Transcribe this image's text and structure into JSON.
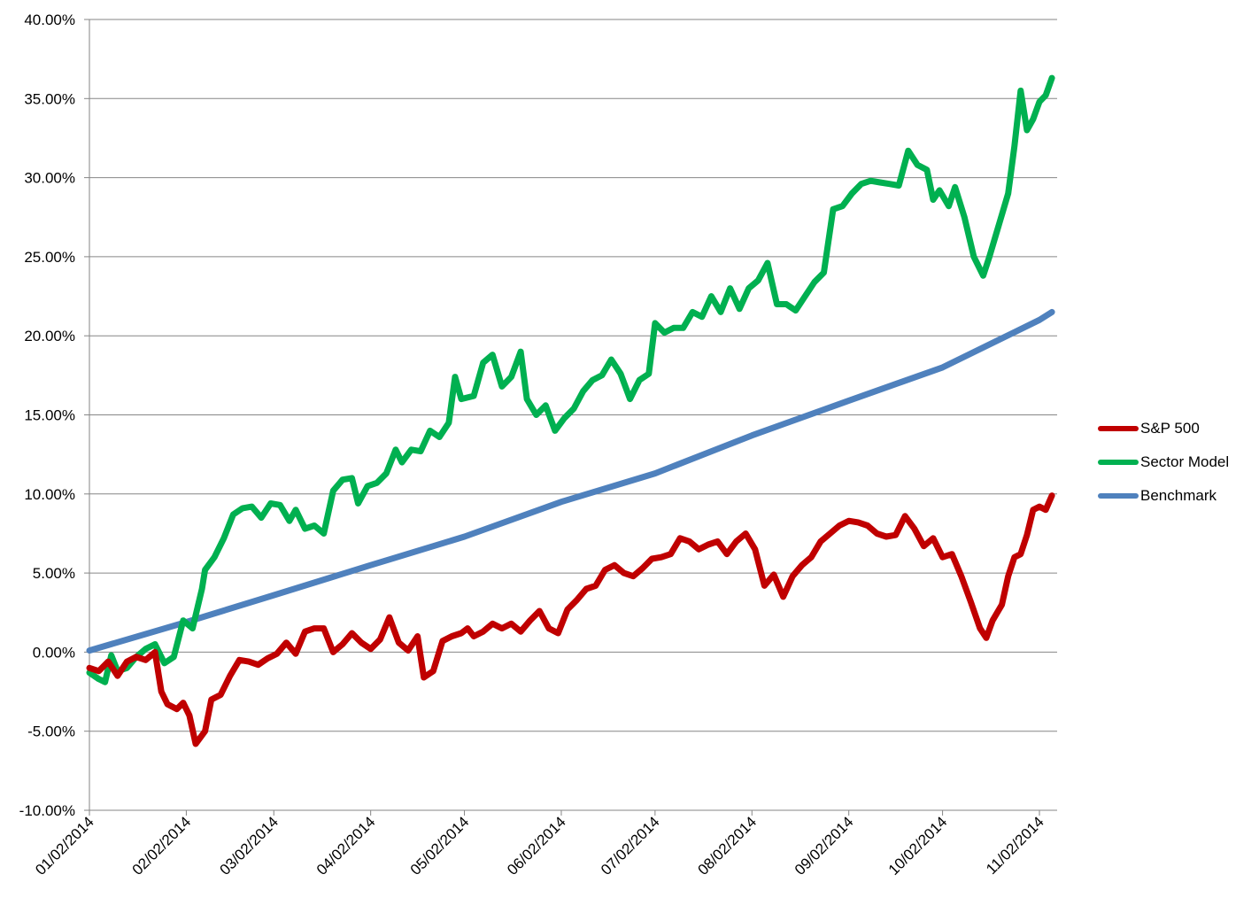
{
  "chart_data": {
    "type": "line",
    "title": "",
    "xlabel": "",
    "ylabel": "",
    "x_tick_labels": [
      "01/02/2014",
      "02/02/2014",
      "03/02/2014",
      "04/02/2014",
      "05/02/2014",
      "06/02/2014",
      "07/02/2014",
      "08/02/2014",
      "09/02/2014",
      "10/02/2014",
      "11/02/2014"
    ],
    "y_tick_labels": [
      "-10.00%",
      "-5.00%",
      "0.00%",
      "5.00%",
      "10.00%",
      "15.00%",
      "20.00%",
      "25.00%",
      "30.00%",
      "35.00%",
      "40.00%"
    ],
    "ylim": [
      -10,
      40
    ],
    "y_unit": "%",
    "grid": "horizontal",
    "legend_position": "right",
    "series": [
      {
        "name": "S&P 500",
        "color": "#c00000",
        "points": [
          [
            "01/02/2014",
            -1.0
          ],
          [
            "01/05/2014",
            -1.2
          ],
          [
            "01/08/2014",
            -0.6
          ],
          [
            "01/11/2014",
            -1.5
          ],
          [
            "01/14/2014",
            -0.6
          ],
          [
            "01/17/2014",
            -0.3
          ],
          [
            "01/20/2014",
            -0.5
          ],
          [
            "01/23/2014",
            0.0
          ],
          [
            "01/25/2014",
            -2.5
          ],
          [
            "01/27/2014",
            -3.3
          ],
          [
            "01/30/2014",
            -3.6
          ],
          [
            "02/01/2014",
            -3.2
          ],
          [
            "02/03/2014",
            -4.0
          ],
          [
            "02/05/2014",
            -5.8
          ],
          [
            "02/08/2014",
            -5.0
          ],
          [
            "02/10/2014",
            -3.0
          ],
          [
            "02/13/2014",
            -2.7
          ],
          [
            "02/16/2014",
            -1.5
          ],
          [
            "02/19/2014",
            -0.5
          ],
          [
            "02/22/2014",
            -0.6
          ],
          [
            "02/25/2014",
            -0.8
          ],
          [
            "02/28/2014",
            -0.4
          ],
          [
            "03/03/2014",
            -0.1
          ],
          [
            "03/06/2014",
            0.6
          ],
          [
            "03/09/2014",
            -0.1
          ],
          [
            "03/12/2014",
            1.3
          ],
          [
            "03/15/2014",
            1.5
          ],
          [
            "03/18/2014",
            1.5
          ],
          [
            "03/21/2014",
            0.0
          ],
          [
            "03/24/2014",
            0.5
          ],
          [
            "03/27/2014",
            1.2
          ],
          [
            "03/30/2014",
            0.6
          ],
          [
            "04/02/2014",
            0.2
          ],
          [
            "04/05/2014",
            0.8
          ],
          [
            "04/08/2014",
            2.2
          ],
          [
            "04/11/2014",
            0.6
          ],
          [
            "04/14/2014",
            0.1
          ],
          [
            "04/17/2014",
            1.0
          ],
          [
            "04/19/2014",
            -1.6
          ],
          [
            "04/22/2014",
            -1.2
          ],
          [
            "04/25/2014",
            0.7
          ],
          [
            "04/28/2014",
            1.0
          ],
          [
            "05/01/2014",
            1.2
          ],
          [
            "05/03/2014",
            1.5
          ],
          [
            "05/05/2014",
            1.0
          ],
          [
            "05/08/2014",
            1.3
          ],
          [
            "05/11/2014",
            1.8
          ],
          [
            "05/14/2014",
            1.5
          ],
          [
            "05/17/2014",
            1.8
          ],
          [
            "05/20/2014",
            1.3
          ],
          [
            "05/23/2014",
            2.0
          ],
          [
            "05/26/2014",
            2.6
          ],
          [
            "05/29/2014",
            1.5
          ],
          [
            "06/01/2014",
            1.2
          ],
          [
            "06/04/2014",
            2.7
          ],
          [
            "06/07/2014",
            3.3
          ],
          [
            "06/10/2014",
            4.0
          ],
          [
            "06/13/2014",
            4.2
          ],
          [
            "06/16/2014",
            5.2
          ],
          [
            "06/19/2014",
            5.5
          ],
          [
            "06/22/2014",
            5.0
          ],
          [
            "06/25/2014",
            4.8
          ],
          [
            "06/28/2014",
            5.3
          ],
          [
            "07/01/2014",
            5.9
          ],
          [
            "07/04/2014",
            6.0
          ],
          [
            "07/07/2014",
            6.2
          ],
          [
            "07/10/2014",
            7.2
          ],
          [
            "07/13/2014",
            7.0
          ],
          [
            "07/16/2014",
            6.5
          ],
          [
            "07/19/2014",
            6.8
          ],
          [
            "07/22/2014",
            7.0
          ],
          [
            "07/25/2014",
            6.2
          ],
          [
            "07/28/2014",
            7.0
          ],
          [
            "07/31/2014",
            7.5
          ],
          [
            "08/03/2014",
            6.5
          ],
          [
            "08/06/2014",
            4.2
          ],
          [
            "08/09/2014",
            4.9
          ],
          [
            "08/12/2014",
            3.5
          ],
          [
            "08/15/2014",
            4.8
          ],
          [
            "08/18/2014",
            5.5
          ],
          [
            "08/21/2014",
            6.0
          ],
          [
            "08/24/2014",
            7.0
          ],
          [
            "08/27/2014",
            7.5
          ],
          [
            "08/30/2014",
            8.0
          ],
          [
            "09/02/2014",
            8.3
          ],
          [
            "09/05/2014",
            8.2
          ],
          [
            "09/08/2014",
            8.0
          ],
          [
            "09/11/2014",
            7.5
          ],
          [
            "09/14/2014",
            7.3
          ],
          [
            "09/17/2014",
            7.4
          ],
          [
            "09/20/2014",
            8.6
          ],
          [
            "09/23/2014",
            7.8
          ],
          [
            "09/26/2014",
            6.7
          ],
          [
            "09/29/2014",
            7.2
          ],
          [
            "10/02/2014",
            6.0
          ],
          [
            "10/05/2014",
            6.2
          ],
          [
            "10/08/2014",
            4.8
          ],
          [
            "10/11/2014",
            3.2
          ],
          [
            "10/14/2014",
            1.5
          ],
          [
            "10/16/2014",
            0.9
          ],
          [
            "10/18/2014",
            2.0
          ],
          [
            "10/21/2014",
            3.0
          ],
          [
            "10/23/2014",
            4.8
          ],
          [
            "10/25/2014",
            6.0
          ],
          [
            "10/27/2014",
            6.2
          ],
          [
            "10/29/2014",
            7.4
          ],
          [
            "10/31/2014",
            9.0
          ],
          [
            "11/02/2014",
            9.2
          ],
          [
            "11/04/2014",
            9.0
          ],
          [
            "11/06/2014",
            9.9
          ]
        ]
      },
      {
        "name": "Sector Model",
        "color": "#00b050",
        "points": [
          [
            "01/02/2014",
            -1.3
          ],
          [
            "01/05/2014",
            -1.7
          ],
          [
            "01/07/2014",
            -1.9
          ],
          [
            "01/09/2014",
            -0.2
          ],
          [
            "01/11/2014",
            -1.2
          ],
          [
            "01/14/2014",
            -1.0
          ],
          [
            "01/17/2014",
            -0.3
          ],
          [
            "01/20/2014",
            0.2
          ],
          [
            "01/23/2014",
            0.5
          ],
          [
            "01/26/2014",
            -0.7
          ],
          [
            "01/29/2014",
            -0.3
          ],
          [
            "02/01/2014",
            2.0
          ],
          [
            "02/04/2014",
            1.5
          ],
          [
            "02/07/2014",
            4.0
          ],
          [
            "02/08/2014",
            5.2
          ],
          [
            "02/11/2014",
            6.0
          ],
          [
            "02/14/2014",
            7.2
          ],
          [
            "02/17/2014",
            8.7
          ],
          [
            "02/20/2014",
            9.1
          ],
          [
            "02/23/2014",
            9.2
          ],
          [
            "02/26/2014",
            8.5
          ],
          [
            "03/01/2014",
            9.4
          ],
          [
            "03/04/2014",
            9.3
          ],
          [
            "03/07/2014",
            8.3
          ],
          [
            "03/09/2014",
            9.0
          ],
          [
            "03/12/2014",
            7.8
          ],
          [
            "03/15/2014",
            8.0
          ],
          [
            "03/18/2014",
            7.5
          ],
          [
            "03/21/2014",
            10.2
          ],
          [
            "03/24/2014",
            10.9
          ],
          [
            "03/27/2014",
            11.0
          ],
          [
            "03/29/2014",
            9.4
          ],
          [
            "04/01/2014",
            10.5
          ],
          [
            "04/04/2014",
            10.7
          ],
          [
            "04/07/2014",
            11.3
          ],
          [
            "04/10/2014",
            12.8
          ],
          [
            "04/12/2014",
            12.0
          ],
          [
            "04/15/2014",
            12.8
          ],
          [
            "04/18/2014",
            12.7
          ],
          [
            "04/21/2014",
            14.0
          ],
          [
            "04/24/2014",
            13.6
          ],
          [
            "04/27/2014",
            14.5
          ],
          [
            "04/29/2014",
            17.4
          ],
          [
            "05/01/2014",
            16.0
          ],
          [
            "05/05/2014",
            16.2
          ],
          [
            "05/08/2014",
            18.3
          ],
          [
            "05/11/2014",
            18.8
          ],
          [
            "05/14/2014",
            16.8
          ],
          [
            "05/17/2014",
            17.4
          ],
          [
            "05/20/2014",
            19.0
          ],
          [
            "05/22/2014",
            16.0
          ],
          [
            "05/25/2014",
            15.0
          ],
          [
            "05/28/2014",
            15.6
          ],
          [
            "05/31/2014",
            14.0
          ],
          [
            "06/03/2014",
            14.8
          ],
          [
            "06/06/2014",
            15.4
          ],
          [
            "06/09/2014",
            16.5
          ],
          [
            "06/12/2014",
            17.2
          ],
          [
            "06/15/2014",
            17.5
          ],
          [
            "06/18/2014",
            18.5
          ],
          [
            "06/21/2014",
            17.6
          ],
          [
            "06/24/2014",
            16.0
          ],
          [
            "06/27/2014",
            17.2
          ],
          [
            "06/30/2014",
            17.6
          ],
          [
            "07/02/2014",
            20.8
          ],
          [
            "07/05/2014",
            20.2
          ],
          [
            "07/08/2014",
            20.5
          ],
          [
            "07/11/2014",
            20.5
          ],
          [
            "07/14/2014",
            21.5
          ],
          [
            "07/17/2014",
            21.2
          ],
          [
            "07/20/2014",
            22.5
          ],
          [
            "07/23/2014",
            21.5
          ],
          [
            "07/26/2014",
            23.0
          ],
          [
            "07/29/2014",
            21.7
          ],
          [
            "08/01/2014",
            23.0
          ],
          [
            "08/04/2014",
            23.5
          ],
          [
            "08/07/2014",
            24.6
          ],
          [
            "08/10/2014",
            22.0
          ],
          [
            "08/13/2014",
            22.0
          ],
          [
            "08/16/2014",
            21.6
          ],
          [
            "08/19/2014",
            22.5
          ],
          [
            "08/22/2014",
            23.4
          ],
          [
            "08/25/2014",
            24.0
          ],
          [
            "08/28/2014",
            28.0
          ],
          [
            "08/31/2014",
            28.2
          ],
          [
            "09/03/2014",
            29.0
          ],
          [
            "09/06/2014",
            29.6
          ],
          [
            "09/09/2014",
            29.8
          ],
          [
            "09/12/2014",
            29.7
          ],
          [
            "09/15/2014",
            29.6
          ],
          [
            "09/18/2014",
            29.5
          ],
          [
            "09/21/2014",
            31.7
          ],
          [
            "09/24/2014",
            30.8
          ],
          [
            "09/27/2014",
            30.5
          ],
          [
            "09/29/2014",
            28.6
          ],
          [
            "10/01/2014",
            29.2
          ],
          [
            "10/04/2014",
            28.2
          ],
          [
            "10/06/2014",
            29.4
          ],
          [
            "10/09/2014",
            27.5
          ],
          [
            "10/12/2014",
            25.0
          ],
          [
            "10/15/2014",
            23.8
          ],
          [
            "10/17/2014",
            25.0
          ],
          [
            "10/20/2014",
            27.0
          ],
          [
            "10/23/2014",
            29.0
          ],
          [
            "10/25/2014",
            32.0
          ],
          [
            "10/27/2014",
            35.5
          ],
          [
            "10/29/2014",
            33.0
          ],
          [
            "10/31/2014",
            33.7
          ],
          [
            "11/02/2014",
            34.8
          ],
          [
            "11/04/2014",
            35.2
          ],
          [
            "11/06/2014",
            36.3
          ]
        ]
      },
      {
        "name": "Benchmark",
        "color": "#4f81bd",
        "points": [
          [
            "01/02/2014",
            0.1
          ],
          [
            "02/02/2014",
            1.9
          ],
          [
            "03/02/2014",
            3.6
          ],
          [
            "04/02/2014",
            5.5
          ],
          [
            "05/02/2014",
            7.3
          ],
          [
            "06/02/2014",
            9.5
          ],
          [
            "07/02/2014",
            11.3
          ],
          [
            "08/02/2014",
            13.7
          ],
          [
            "09/02/2014",
            15.9
          ],
          [
            "10/02/2014",
            18.0
          ],
          [
            "11/02/2014",
            21.0
          ],
          [
            "11/06/2014",
            21.5
          ]
        ]
      }
    ]
  }
}
